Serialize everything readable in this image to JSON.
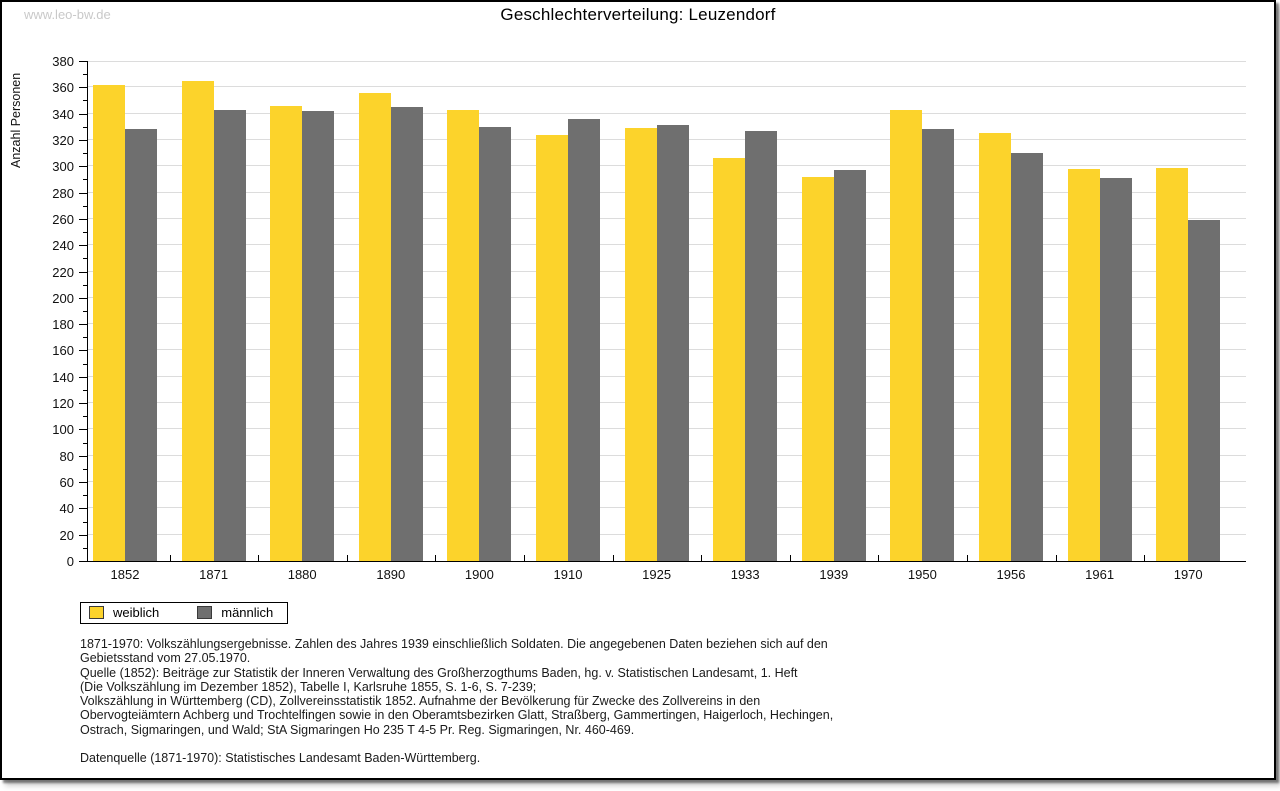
{
  "watermark": "www.leo-bw.de",
  "chart_data": {
    "type": "bar",
    "title": "Geschlechterverteilung: Leuzendorf",
    "xlabel": "",
    "ylabel": "Anzahl Personen",
    "categories": [
      "1852",
      "1871",
      "1880",
      "1890",
      "1900",
      "1910",
      "1925",
      "1933",
      "1939",
      "1950",
      "1956",
      "1961",
      "1970"
    ],
    "series": [
      {
        "name": "weiblich",
        "color": "#FCD32B",
        "values": [
          362,
          365,
          346,
          356,
          343,
          324,
          329,
          306,
          292,
          343,
          325,
          298,
          299
        ]
      },
      {
        "name": "männlich",
        "color": "#6F6F6F",
        "values": [
          328,
          343,
          342,
          345,
          330,
          336,
          331,
          327,
          297,
          328,
          310,
          291,
          259
        ]
      }
    ],
    "ylim": [
      0,
      380
    ],
    "ytick_step": 20,
    "ytick_minor_step": 10,
    "grid": "horizontal",
    "gridline_color": "#dcdcdc",
    "legend_position": "bottom-left"
  },
  "footer": {
    "lines": [
      "1871-1970: Volkszählungsergebnisse. Zahlen des Jahres 1939 einschließlich Soldaten. Die angegebenen Daten beziehen sich auf den",
      "Gebietsstand vom 27.05.1970.",
      "Quelle (1852): Beiträge zur Statistik der Inneren Verwaltung des Großherzogthums Baden, hg. v. Statistischen Landesamt, 1. Heft",
      "(Die Volkszählung im Dezember 1852), Tabelle I, Karlsruhe 1855, S. 1-6, S. 7-239;",
      "Volkszählung in Württemberg (CD), Zollvereinsstatistik 1852. Aufnahme der Bevölkerung für Zwecke des Zollvereins in den",
      "Obervogteiämtern Achberg und Trochtelfingen sowie in den Oberamtsbezirken Glatt, Straßberg, Gammertingen, Haigerloch, Hechingen,",
      "Ostrach, Sigmaringen, und Wald; StA Sigmaringen Ho 235 T 4-5 Pr. Reg. Sigmaringen, Nr. 460-469."
    ],
    "datasource": "Datenquelle (1871-1970): Statistisches Landesamt Baden-Württemberg."
  }
}
